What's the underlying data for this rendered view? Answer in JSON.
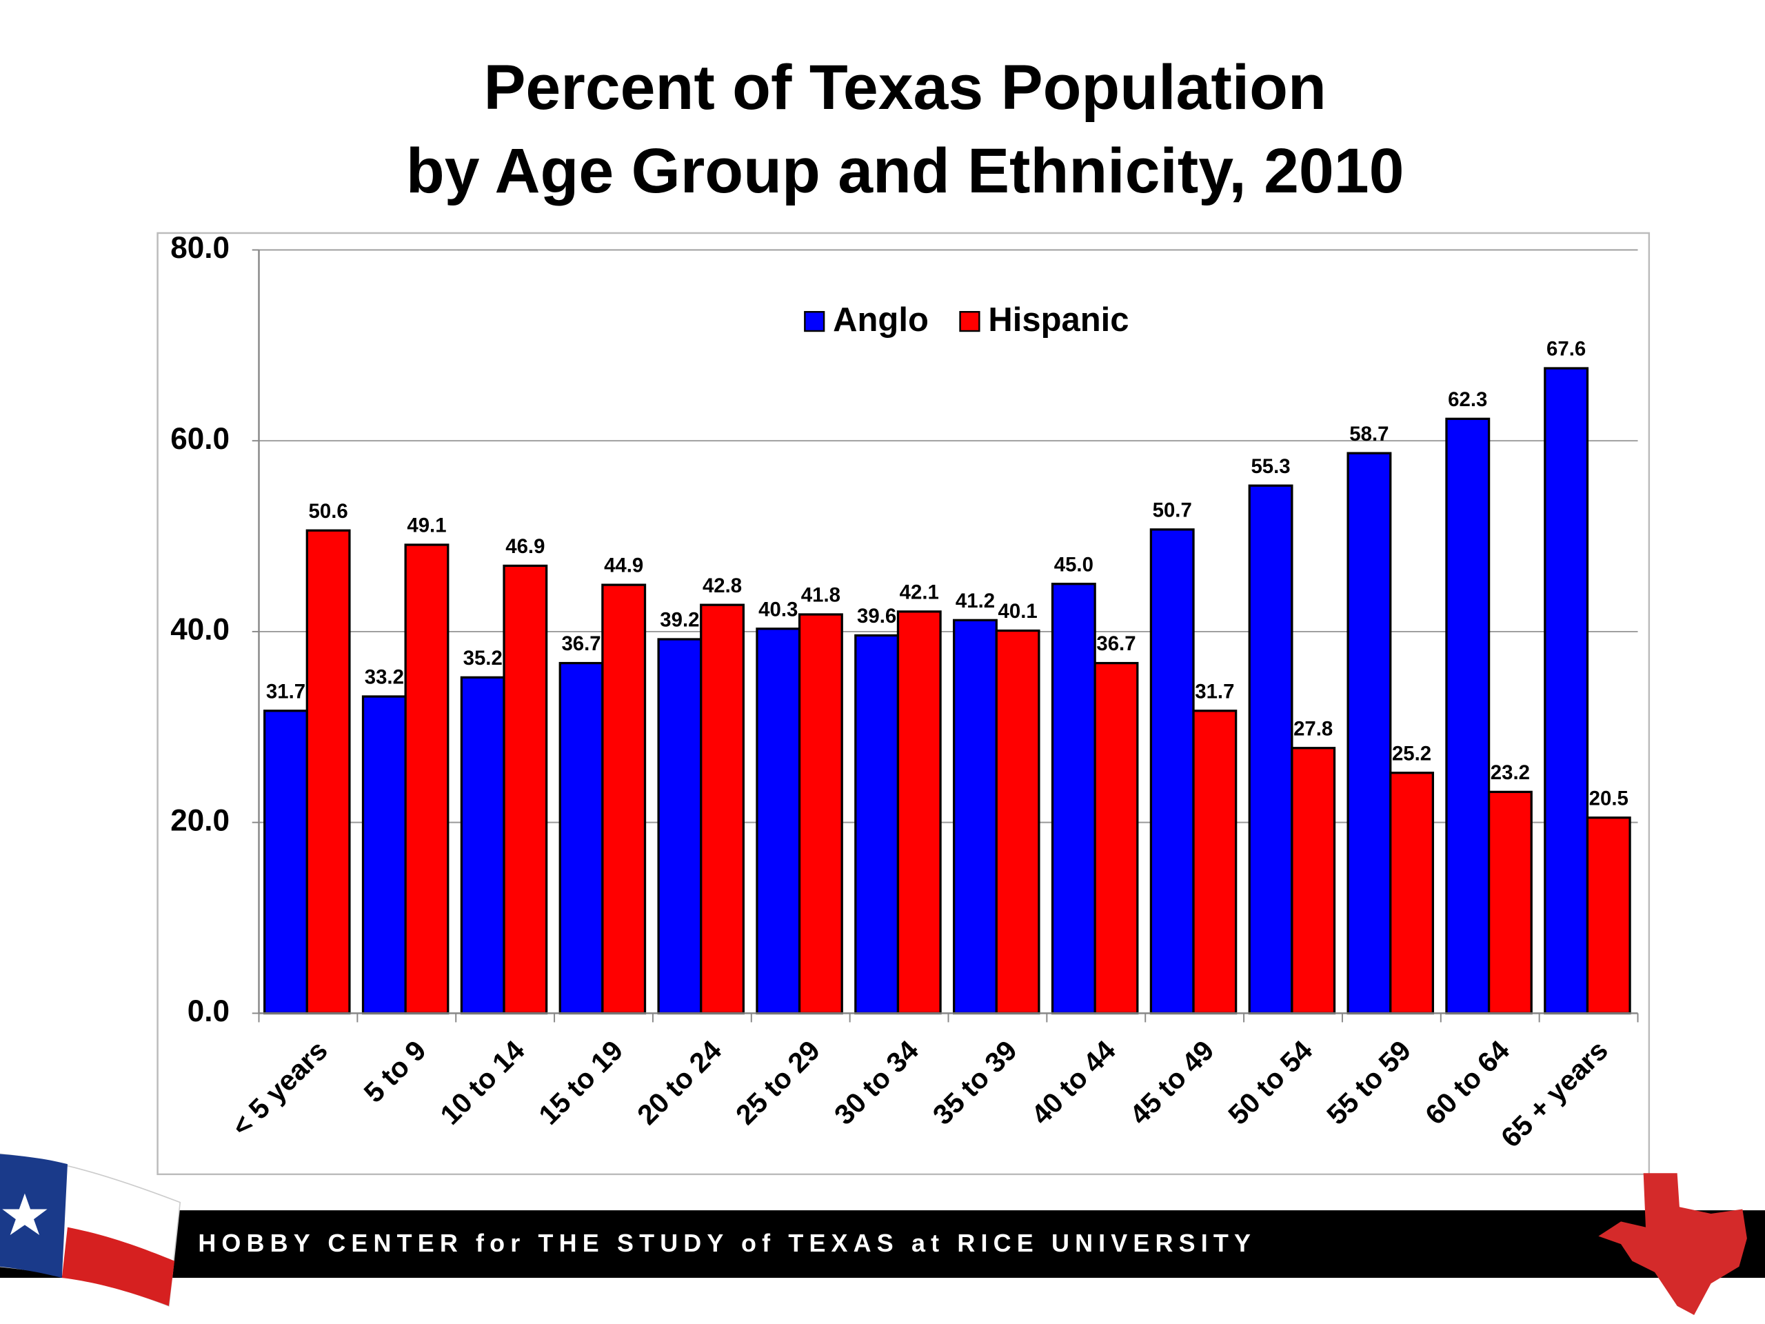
{
  "chart_data": {
    "type": "bar",
    "title": [
      "Percent of Texas Population",
      "by Age Group and Ethnicity, 2010"
    ],
    "categories": [
      "< 5 years",
      "5 to 9",
      "10 to 14",
      "15 to 19",
      "20 to 24",
      "25 to 29",
      "30 to 34",
      "35 to 39",
      "40 to 44",
      "45 to 49",
      "50 to 54",
      "55 to 59",
      "60 to 64",
      "65 + years"
    ],
    "series": [
      {
        "name": "Anglo",
        "color": "#0000ff",
        "values": [
          31.7,
          33.2,
          35.2,
          36.7,
          39.2,
          40.3,
          39.6,
          41.2,
          45.0,
          50.7,
          55.3,
          58.7,
          62.3,
          67.6
        ],
        "value_labels": [
          "31.7",
          "33.2",
          "35.2",
          "36.7",
          "39.2",
          "40.3",
          "39.6",
          "41.2",
          "45.0",
          "50.7",
          "55.3",
          "58.7",
          "62.3",
          "67.6"
        ]
      },
      {
        "name": "Hispanic",
        "color": "#ff0000",
        "values": [
          50.6,
          49.1,
          46.9,
          44.9,
          42.8,
          41.8,
          42.1,
          40.1,
          36.7,
          31.7,
          27.8,
          25.2,
          23.2,
          20.5
        ],
        "value_labels": [
          "50.6",
          "49.1",
          "46.9",
          "44.9",
          "42.8",
          "41.8",
          "42.1",
          "40.1",
          "36.7",
          "31.7",
          "27.8",
          "25.2",
          "23.2",
          "20.5"
        ]
      }
    ],
    "ylim": [
      0,
      80
    ],
    "yticks": [
      {
        "value": 0,
        "label": "0.0"
      },
      {
        "value": 20,
        "label": "20.0"
      },
      {
        "value": 40,
        "label": "40.0"
      },
      {
        "value": 60,
        "label": "60.0"
      },
      {
        "value": 80,
        "label": "80.0"
      }
    ],
    "grid": true,
    "legend": "top"
  },
  "footer": {
    "text": "HOBBY CENTER for THE STUDY of TEXAS at RICE UNIVERSITY"
  }
}
